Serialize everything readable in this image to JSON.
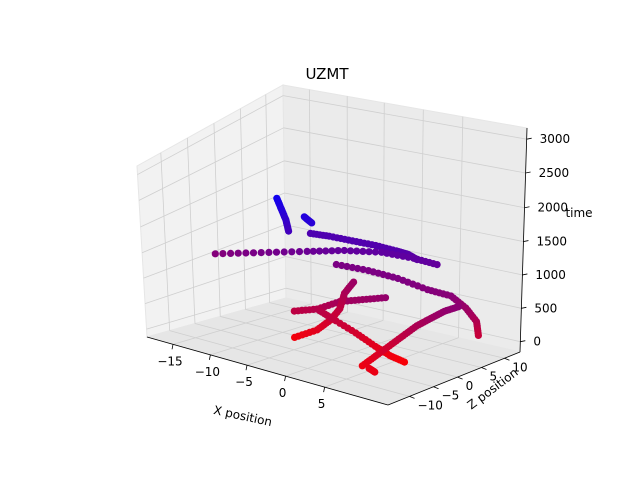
{
  "chart_data": {
    "type": "scatter3d",
    "title": "UZMT",
    "xlabel": "X position",
    "ylabel": "Z position",
    "zlabel": "time",
    "xticks": [
      "−15",
      "−10",
      "−5",
      "0",
      "5"
    ],
    "yticks": [
      "−10",
      "−5",
      "0",
      "5",
      "10"
    ],
    "zticks": [
      "0",
      "500",
      "1000",
      "1500",
      "2000",
      "2500",
      "3000"
    ],
    "xlim": [
      -18,
      9
    ],
    "ylim": [
      -13,
      13
    ],
    "zlim": [
      0,
      3100
    ],
    "color_encoding": {
      "variable": "time",
      "low": "#ff0000",
      "high": "#0000ff"
    },
    "grid": true,
    "series": [
      {
        "points": [
          [
            -5.5,
            -2,
            2150
          ],
          [
            -4,
            -1,
            2140
          ],
          [
            -2,
            0,
            2120
          ],
          [
            0,
            1,
            2100
          ],
          [
            2,
            1.5,
            2080
          ],
          [
            3,
            2,
            2050
          ],
          [
            4,
            2,
            2000
          ]
        ]
      },
      {
        "points": [
          [
            -14,
            -6,
            1500
          ],
          [
            -10,
            -4,
            1650
          ],
          [
            -6,
            -2,
            1800
          ],
          [
            -3,
            0,
            1900
          ],
          [
            0,
            2,
            1950
          ],
          [
            3,
            3,
            1950
          ],
          [
            5,
            4,
            1900
          ]
        ]
      },
      {
        "points": [
          [
            -4,
            0,
            1600
          ],
          [
            -1,
            1,
            1600
          ],
          [
            2,
            1.5,
            1580
          ],
          [
            5,
            2,
            1500
          ],
          [
            7,
            3,
            1450
          ],
          [
            8,
            4,
            1250
          ],
          [
            8.5,
            5,
            1000
          ],
          [
            8,
            6,
            700
          ]
        ]
      },
      {
        "points": [
          [
            -6,
            -5,
            800
          ],
          [
            -4,
            -4,
            900
          ],
          [
            -2,
            -3,
            1100
          ],
          [
            0,
            -2,
            1200
          ],
          [
            2,
            -1,
            1300
          ]
        ]
      },
      {
        "points": [
          [
            -8,
            -2,
            150
          ],
          [
            -6,
            -1,
            350
          ],
          [
            -5,
            0,
            550
          ],
          [
            -4.5,
            1,
            750
          ],
          [
            -4.5,
            2,
            1000
          ],
          [
            -4,
            3,
            1200
          ]
        ]
      },
      {
        "points": [
          [
            -4,
            -4,
            900
          ],
          [
            -3,
            -3,
            750
          ],
          [
            -1,
            -2,
            550
          ],
          [
            0.5,
            -1,
            350
          ],
          [
            1.5,
            0,
            200
          ],
          [
            2.5,
            1,
            100
          ]
        ]
      },
      {
        "points": [
          [
            2,
            -6,
            200
          ],
          [
            3,
            -5,
            400
          ],
          [
            4,
            -4,
            600
          ],
          [
            5,
            -3,
            800
          ],
          [
            6,
            -2,
            1000
          ],
          [
            7,
            -1,
            1150
          ],
          [
            8,
            0,
            1300
          ],
          [
            9,
            1,
            1400
          ]
        ]
      },
      {
        "points": [
          [
            -6,
            -7,
            2900
          ],
          [
            -5.8,
            -6.6,
            2700
          ],
          [
            -5.6,
            -6.2,
            2500
          ],
          [
            -5.5,
            -6,
            2300
          ]
        ]
      },
      {
        "points": [
          [
            -3,
            -7,
            2700
          ],
          [
            -2.5,
            -6.5,
            2600
          ]
        ]
      },
      {
        "points": [
          [
            4,
            -8,
            300
          ],
          [
            4.5,
            -7.8,
            250
          ]
        ]
      }
    ]
  }
}
